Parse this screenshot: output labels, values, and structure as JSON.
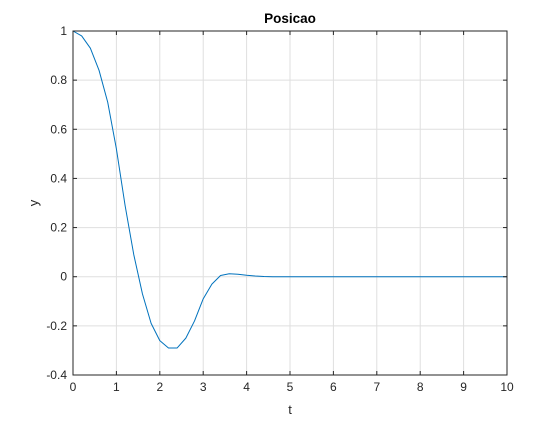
{
  "chart_data": {
    "type": "line",
    "title": "Posicao",
    "xlabel": "t",
    "ylabel": "y",
    "xlim": [
      0,
      10
    ],
    "ylim": [
      -0.4,
      1
    ],
    "xticks": [
      0,
      1,
      2,
      3,
      4,
      5,
      6,
      7,
      8,
      9,
      10
    ],
    "yticks": [
      -0.4,
      -0.2,
      0,
      0.2,
      0.4,
      0.6,
      0.8,
      1
    ],
    "xtick_labels": [
      "0",
      "1",
      "2",
      "3",
      "4",
      "5",
      "6",
      "7",
      "8",
      "9",
      "10"
    ],
    "ytick_labels": [
      "-0.4",
      "-0.2",
      "0",
      "0.2",
      "0.4",
      "0.6",
      "0.8",
      "1"
    ],
    "grid": true,
    "series": [
      {
        "color": "#0072BD",
        "x": [
          0,
          0.2,
          0.4,
          0.6,
          0.8,
          1.0,
          1.2,
          1.4,
          1.6,
          1.8,
          2.0,
          2.2,
          2.4,
          2.6,
          2.8,
          3.0,
          3.2,
          3.4,
          3.6,
          3.8,
          4.0,
          4.2,
          4.4,
          4.6,
          4.8,
          5.0,
          6.0,
          7.0,
          8.0,
          9.0,
          10.0
        ],
        "y": [
          1.0,
          0.98,
          0.93,
          0.84,
          0.71,
          0.52,
          0.29,
          0.09,
          -0.07,
          -0.19,
          -0.26,
          -0.29,
          -0.29,
          -0.25,
          -0.18,
          -0.09,
          -0.03,
          0.005,
          0.012,
          0.01,
          0.006,
          0.003,
          0.001,
          0.0,
          0.0,
          0.0,
          0.0,
          0.0,
          0.0,
          0.0,
          0.0
        ]
      }
    ]
  }
}
